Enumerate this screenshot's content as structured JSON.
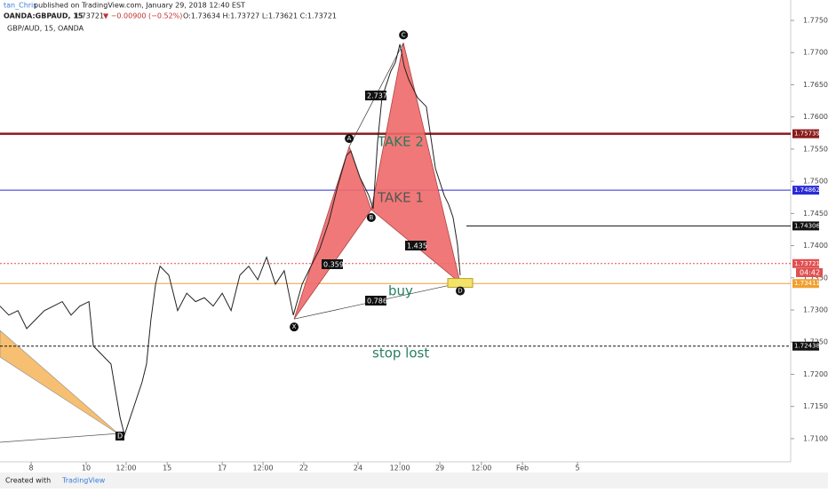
{
  "header": {
    "author": "tan_Chris",
    "published": "published on TradingView.com, January 29, 2018 12:40 EST",
    "symbol": "OANDA:GBPAUD, 15",
    "last": "1.73721",
    "change": "▼ −0.00900 (−0.52%)",
    "ohlc": "O:1.73634 H:1.73727 L:1.73621 C:1.73721"
  },
  "footer": {
    "created": "Created with",
    "brand": "TradingView"
  },
  "chart_data": {
    "type": "line",
    "title": "GBP/AUD, 15, OANDA",
    "color": "#222222",
    "x": [
      -1.13,
      -0.81,
      -0.48,
      -0.16,
      0.16,
      0.48,
      0.81,
      1.13,
      1.45,
      1.77,
      2.1,
      2.26,
      2.58,
      2.9,
      3.06,
      3.23,
      3.39,
      3.71,
      4.03,
      4.19,
      4.35,
      4.52,
      4.68,
      5.0,
      5.32,
      5.65,
      5.97,
      6.29,
      6.61,
      6.94,
      7.26,
      7.58,
      7.9,
      8.23,
      8.55,
      8.87,
      9.19,
      9.52,
      9.84,
      10.16,
      10.48,
      10.81,
      11.13,
      11.45,
      11.61,
      11.94,
      12.26,
      12.42,
      12.58,
      12.74,
      13.06,
      13.23,
      13.39,
      13.55,
      13.71,
      14.03,
      14.35,
      14.68,
      15.0,
      15.16,
      15.32,
      15.48,
      15.58
    ],
    "values": [
      1.7306,
      1.7292,
      1.7299,
      1.7271,
      1.7285,
      1.7299,
      1.7306,
      1.7313,
      1.7292,
      1.7306,
      1.7313,
      1.7244,
      1.723,
      1.7216,
      1.7175,
      1.7133,
      1.7106,
      1.7147,
      1.7188,
      1.7216,
      1.7285,
      1.734,
      1.7368,
      1.7354,
      1.7299,
      1.7326,
      1.7313,
      1.7319,
      1.7306,
      1.7326,
      1.7299,
      1.7354,
      1.7368,
      1.7347,
      1.7382,
      1.734,
      1.7361,
      1.7292,
      1.734,
      1.7368,
      1.7395,
      1.7437,
      1.7492,
      1.754,
      1.7547,
      1.7506,
      1.7478,
      1.7457,
      1.7561,
      1.763,
      1.7671,
      1.7685,
      1.7713,
      1.7678,
      1.7658,
      1.763,
      1.7616,
      1.752,
      1.7478,
      1.7464,
      1.7444,
      1.7402,
      1.7354
    ],
    "xlim": [
      -1.13,
      27.58
    ],
    "ylim": [
      1.7064,
      1.775
    ],
    "xticks": [
      {
        "value": 0,
        "label": "8"
      },
      {
        "value": 2,
        "label": "10"
      },
      {
        "value": 3.45,
        "label": "12:00"
      },
      {
        "value": 4.94,
        "label": "15"
      },
      {
        "value": 6.94,
        "label": "17"
      },
      {
        "value": 8.42,
        "label": "12:00"
      },
      {
        "value": 9.9,
        "label": "22"
      },
      {
        "value": 11.87,
        "label": "24"
      },
      {
        "value": 13.39,
        "label": "12:00"
      },
      {
        "value": 14.84,
        "label": "29"
      },
      {
        "value": 16.35,
        "label": "12:00"
      },
      {
        "value": 17.84,
        "label": "Feb"
      },
      {
        "value": 19.84,
        "label": "5"
      }
    ],
    "yticks": [
      {
        "value": 1.71,
        "label": "1.71000"
      },
      {
        "value": 1.715,
        "label": "1.71500"
      },
      {
        "value": 1.72,
        "label": "1.72000"
      },
      {
        "value": 1.725,
        "label": "1.72500"
      },
      {
        "value": 1.73,
        "label": "1.73000"
      },
      {
        "value": 1.735,
        "label": "1.73500"
      },
      {
        "value": 1.74,
        "label": "1.74000"
      },
      {
        "value": 1.745,
        "label": "1.74500"
      },
      {
        "value": 1.75,
        "label": "1.75000"
      },
      {
        "value": 1.755,
        "label": "1.75500"
      },
      {
        "value": 1.76,
        "label": "1.76000"
      },
      {
        "value": 1.765,
        "label": "1.76500"
      },
      {
        "value": 1.77,
        "label": "1.77000"
      },
      {
        "value": 1.775,
        "label": "1.77500"
      }
    ],
    "levels": [
      {
        "value": 1.75739,
        "color": "#8b1a1a"
      },
      {
        "value": 1.74862,
        "color": "#2a2ad8"
      },
      {
        "value": 1.74306,
        "color": "#111111"
      },
      {
        "value": 1.73721,
        "color": "#e05050"
      },
      {
        "value": 1.73411,
        "color": "#f0a030"
      },
      {
        "value": 1.72438,
        "color": "#111111"
      }
    ],
    "pattern": {
      "color": "#f06a6a",
      "points": [
        {
          "label": "X",
          "x": 9.55,
          "y": 1.7286
        },
        {
          "label": "A",
          "x": 11.55,
          "y": 1.7554
        },
        {
          "label": "B",
          "x": 12.35,
          "y": 1.7456
        },
        {
          "label": "C",
          "x": 13.52,
          "y": 1.7715
        },
        {
          "label": "D",
          "x": 15.58,
          "y": 1.7342
        }
      ]
    },
    "left_point": "D",
    "ratios": [
      "2.737",
      "0.359",
      "1.435",
      "0.786"
    ],
    "annotations": [
      "TAKE 2",
      "TAKE 1",
      "buy",
      "stop lost"
    ],
    "countdown": "04:42"
  }
}
